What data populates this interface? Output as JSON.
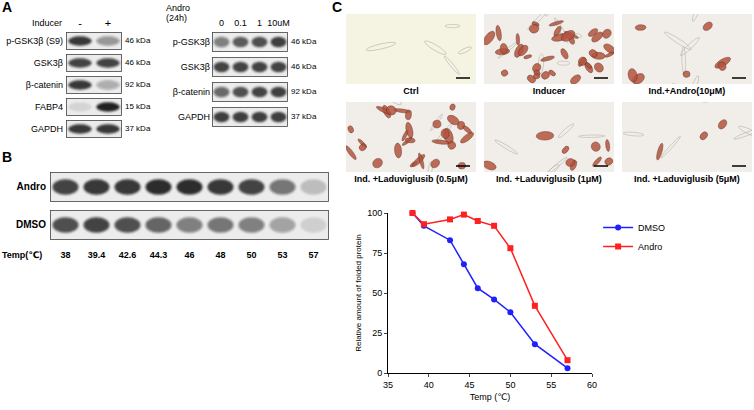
{
  "chart_data": {
    "type": "line",
    "x_label": "Temp (℃)",
    "y_label": "Relative amount of folded protein",
    "x": [
      38,
      39.4,
      42.6,
      44.3,
      46,
      48,
      50,
      53,
      57
    ],
    "series": [
      {
        "name": "DMSO",
        "color": "#2020ff",
        "marker": "circle",
        "values": [
          100,
          92,
          83,
          68,
          53,
          46,
          38,
          18,
          3
        ]
      },
      {
        "name": "Andro",
        "color": "#ff2020",
        "marker": "square",
        "values": [
          100,
          93,
          96,
          99,
          95,
          92,
          78,
          42,
          8
        ]
      }
    ],
    "xlim": [
      35,
      60
    ],
    "xticks": [
      35,
      40,
      45,
      50,
      55,
      60
    ],
    "ylim": [
      0,
      100
    ],
    "yticks": [
      0,
      25,
      50,
      75,
      100
    ],
    "grid": false,
    "legend": "right"
  },
  "panel_A": {
    "letter": "A",
    "blot_left": {
      "treatment": "Inducer",
      "lanes": [
        "-",
        "+"
      ],
      "rows": [
        {
          "label": "p-GSK3β (S9)",
          "kda": "46 kDa"
        },
        {
          "label": "GSK3β",
          "kda": "46 kDa"
        },
        {
          "label": "β-catenin",
          "kda": "92 kDa"
        },
        {
          "label": "FABP4",
          "kda": "15 kDa"
        },
        {
          "label": "GAPDH",
          "kda": "37 kDa"
        }
      ]
    },
    "blot_right": {
      "treatment": "Andro (24h)",
      "lanes": [
        "0",
        "0.1",
        "1",
        "10uM"
      ],
      "rows": [
        {
          "label": "p-GSK3β",
          "kda": "46 kDa"
        },
        {
          "label": "GSK3β",
          "kda": "46 kDa"
        },
        {
          "label": "β-catenin",
          "kda": "92 kDa"
        },
        {
          "label": "GAPDH",
          "kda": "37 kDa"
        }
      ]
    }
  },
  "panel_B": {
    "letter": "B",
    "blot": {
      "rows": [
        "Andro",
        "DMSO"
      ],
      "axis_label": "Temp(℃)",
      "temps": [
        38,
        39.4,
        42.6,
        44.3,
        46,
        48,
        50,
        53,
        57
      ]
    }
  },
  "panel_C": {
    "letter": "C",
    "images": [
      "Ctrl",
      "Inducer",
      "Ind.+Andro(10μM)",
      "Ind. +Laduviglusib (0.5μM)",
      "Ind. +Laduviglusib (1μM)",
      "Ind. +Laduviglusib (5μM)"
    ]
  }
}
